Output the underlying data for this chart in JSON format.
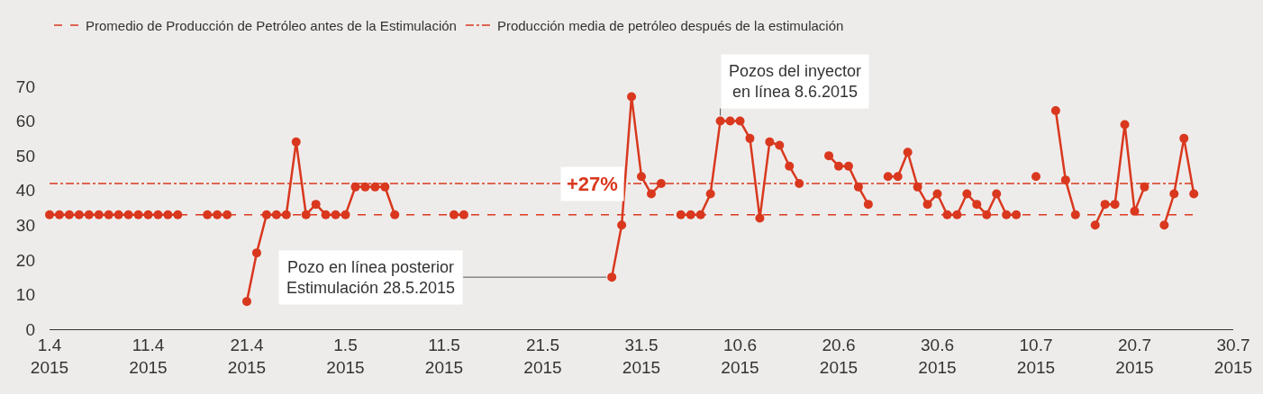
{
  "chart_data": {
    "type": "line",
    "x": [
      "2015-04-01",
      "2015-04-02",
      "2015-04-03",
      "2015-04-04",
      "2015-04-05",
      "2015-04-06",
      "2015-04-07",
      "2015-04-08",
      "2015-04-09",
      "2015-04-10",
      "2015-04-11",
      "2015-04-12",
      "2015-04-13",
      "2015-04-14",
      "2015-04-15",
      "2015-04-16",
      "2015-04-17",
      "2015-04-18",
      "2015-04-19",
      "2015-04-20",
      "2015-04-21",
      "2015-04-22",
      "2015-04-23",
      "2015-04-24",
      "2015-04-25",
      "2015-04-26",
      "2015-04-27",
      "2015-04-28",
      "2015-04-29",
      "2015-04-30",
      "2015-05-01",
      "2015-05-02",
      "2015-05-03",
      "2015-05-04",
      "2015-05-05",
      "2015-05-06",
      "2015-05-07",
      "2015-05-08",
      "2015-05-09",
      "2015-05-10",
      "2015-05-11",
      "2015-05-12",
      "2015-05-13",
      "2015-05-14",
      "2015-05-15",
      "2015-05-16",
      "2015-05-17",
      "2015-05-18",
      "2015-05-19",
      "2015-05-20",
      "2015-05-21",
      "2015-05-22",
      "2015-05-23",
      "2015-05-24",
      "2015-05-25",
      "2015-05-26",
      "2015-05-27",
      "2015-05-28",
      "2015-05-29",
      "2015-05-30",
      "2015-05-31",
      "2015-06-01",
      "2015-06-02",
      "2015-06-03",
      "2015-06-04",
      "2015-06-05",
      "2015-06-06",
      "2015-06-07",
      "2015-06-08",
      "2015-06-09",
      "2015-06-10",
      "2015-06-11",
      "2015-06-12",
      "2015-06-13",
      "2015-06-14",
      "2015-06-15",
      "2015-06-16",
      "2015-06-17",
      "2015-06-18",
      "2015-06-19",
      "2015-06-20",
      "2015-06-21",
      "2015-06-22",
      "2015-06-23",
      "2015-06-24",
      "2015-06-25",
      "2015-06-26",
      "2015-06-27",
      "2015-06-28",
      "2015-06-29",
      "2015-06-30",
      "2015-07-01",
      "2015-07-02",
      "2015-07-03",
      "2015-07-04",
      "2015-07-05",
      "2015-07-06",
      "2015-07-07",
      "2015-07-08",
      "2015-07-09",
      "2015-07-10",
      "2015-07-11",
      "2015-07-12",
      "2015-07-13",
      "2015-07-14",
      "2015-07-15",
      "2015-07-16",
      "2015-07-17",
      "2015-07-18",
      "2015-07-19",
      "2015-07-20",
      "2015-07-21",
      "2015-07-22",
      "2015-07-23",
      "2015-07-24",
      "2015-07-25",
      "2015-07-26"
    ],
    "series": [
      {
        "color": "#d9381e",
        "values": [
          33,
          33,
          33,
          33,
          33,
          33,
          33,
          33,
          33,
          33,
          33,
          33,
          33,
          33,
          null,
          null,
          33,
          33,
          33,
          null,
          8,
          22,
          33,
          33,
          33,
          54,
          33,
          36,
          33,
          33,
          33,
          41,
          41,
          41,
          41,
          33,
          null,
          null,
          null,
          null,
          null,
          33,
          33,
          null,
          null,
          null,
          null,
          null,
          null,
          null,
          null,
          null,
          null,
          null,
          null,
          null,
          null,
          15,
          30,
          67,
          44,
          39,
          42,
          null,
          33,
          33,
          33,
          39,
          60,
          60,
          60,
          55,
          32,
          54,
          53,
          47,
          42,
          null,
          null,
          50,
          47,
          47,
          41,
          36,
          null,
          44,
          44,
          51,
          41,
          36,
          39,
          33,
          33,
          39,
          36,
          33,
          39,
          33,
          33,
          null,
          44,
          null,
          63,
          43,
          33,
          null,
          30,
          36,
          36,
          59,
          34,
          41,
          null,
          30,
          39,
          55,
          39
        ]
      }
    ],
    "xlim": [
      "2015-04-01",
      "2015-07-30"
    ],
    "xticks": [
      {
        "value": "2015-04-01",
        "label": "1.4\n2015"
      },
      {
        "value": "2015-04-11",
        "label": "11.4\n2015"
      },
      {
        "value": "2015-04-21",
        "label": "21.4\n2015"
      },
      {
        "value": "2015-05-01",
        "label": "1.5\n2015"
      },
      {
        "value": "2015-05-11",
        "label": "11.5\n2015"
      },
      {
        "value": "2015-05-21",
        "label": "21.5\n2015"
      },
      {
        "value": "2015-05-31",
        "label": "31.5\n2015"
      },
      {
        "value": "2015-06-10",
        "label": "10.6\n2015"
      },
      {
        "value": "2015-06-20",
        "label": "20.6\n2015"
      },
      {
        "value": "2015-06-30",
        "label": "30.6\n2015"
      },
      {
        "value": "2015-07-10",
        "label": "10.7\n2015"
      },
      {
        "value": "2015-07-20",
        "label": "20.7\n2015"
      },
      {
        "value": "2015-07-30",
        "label": "30.7\n2015"
      }
    ],
    "ylim": [
      0,
      70
    ],
    "yticks": [
      0,
      10,
      20,
      30,
      40,
      50,
      60,
      70
    ],
    "grid": false,
    "marker": "circle",
    "line_style": "solid",
    "legend": "top",
    "ref_lines": [
      {
        "axis": "y",
        "value": 33,
        "label": "Promedio de Producción de Petróleo antes de la Estimulación",
        "color": "#d9381e",
        "line_style": "dashed"
      },
      {
        "axis": "y",
        "value": 42,
        "label": "Producción media de petróleo después de la estimulación",
        "color": "#d9381e",
        "line_style": "dashdot"
      }
    ],
    "annotations": [
      {
        "text": "+27%",
        "x": "2015-05-26",
        "y": 42
      },
      {
        "text": "Pozo en línea posterior\nEstimulación 28.5.2015",
        "x": "2015-05-28",
        "y": 15
      },
      {
        "text": "Pozos del inyector\nen línea 8.6.2015",
        "x": "2015-06-08",
        "y": 60
      }
    ]
  }
}
